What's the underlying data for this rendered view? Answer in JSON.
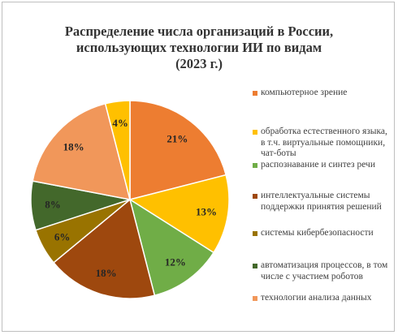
{
  "chart_data": {
    "type": "pie",
    "title_lines": [
      "Распределение числа организаций в России,",
      "использующих технологии ИИ по видам",
      "(2023 г.)"
    ],
    "slices": [
      {
        "label": "компьютерное зрение",
        "value": 21,
        "value_label": "21%",
        "color": "#ed7d31"
      },
      {
        "label": "обработка естественного языка, в т.ч. виртуальные помощники, чат-боты",
        "value": 13,
        "value_label": "13%",
        "color": "#ffc000"
      },
      {
        "label": "распознавание и синтез речи",
        "value": 12,
        "value_label": "12%",
        "color": "#70ad47"
      },
      {
        "label": "интеллектуальные системы поддержки принятия решений",
        "value": 18,
        "value_label": "18%",
        "color": "#9e480e"
      },
      {
        "label": "системы кибербезопасности",
        "value": 6,
        "value_label": "6%",
        "color": "#997300"
      },
      {
        "label": "автоматизация процессов, в том числе с участием роботов",
        "value": 8,
        "value_label": "8%",
        "color": "#43682b"
      },
      {
        "label": "технологии анализа данных",
        "value": 18,
        "value_label": "18%",
        "color": "#f1975a"
      },
      {
        "label": "",
        "value": 4,
        "value_label": "4%",
        "color": "#ffc000"
      }
    ],
    "legend_position": "right"
  }
}
